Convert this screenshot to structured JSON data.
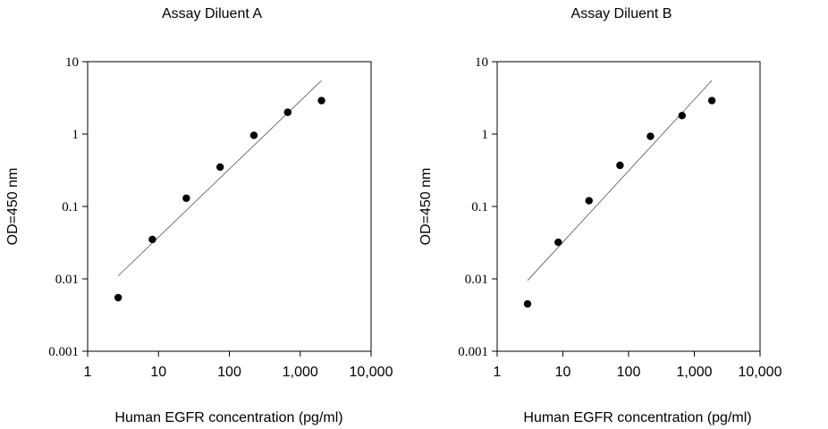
{
  "chart_data": [
    {
      "type": "scatter",
      "title": "Assay Diluent A",
      "xlabel": "Human EGFR concentration (pg/ml)",
      "ylabel": "OD=450 nm",
      "x_scale": "log",
      "y_scale": "log",
      "xlim": [
        1,
        10000
      ],
      "ylim": [
        0.001,
        10
      ],
      "x_ticks": [
        "1",
        "10",
        "100",
        "1,000",
        "10,000"
      ],
      "y_ticks": [
        "0.001",
        "0.01",
        "0.1",
        "1",
        "10"
      ],
      "grid": false,
      "legend": "none",
      "points": {
        "x": [
          2.7,
          8.2,
          24.7,
          74.1,
          222,
          667,
          2000
        ],
        "y": [
          0.0055,
          0.035,
          0.13,
          0.35,
          0.96,
          2.0,
          2.9
        ]
      },
      "fit_line": {
        "x": [
          2.7,
          2000
        ],
        "y": [
          0.011,
          5.5
        ]
      }
    },
    {
      "type": "scatter",
      "title": "Assay Diluent B",
      "xlabel": "Human EGFR concentration (pg/ml)",
      "ylabel": "OD=450 nm",
      "x_scale": "log",
      "y_scale": "log",
      "xlim": [
        1,
        10000
      ],
      "ylim": [
        0.001,
        10
      ],
      "x_ticks": [
        "1",
        "10",
        "100",
        "1,000",
        "10,000"
      ],
      "y_ticks": [
        "0.001",
        "0.01",
        "0.1",
        "1",
        "10"
      ],
      "grid": false,
      "legend": "none",
      "points": {
        "x": [
          2.9,
          8.5,
          25,
          74,
          215,
          650,
          1850
        ],
        "y": [
          0.0045,
          0.032,
          0.12,
          0.37,
          0.93,
          1.8,
          2.9
        ]
      },
      "fit_line": {
        "x": [
          2.9,
          1850
        ],
        "y": [
          0.0095,
          5.5
        ]
      }
    }
  ]
}
